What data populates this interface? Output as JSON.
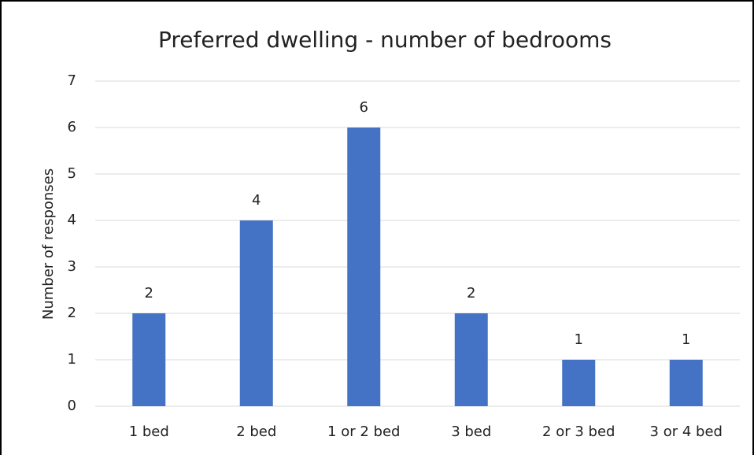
{
  "chart_data": {
    "type": "bar",
    "title": "Preferred dwelling - number of bedrooms",
    "y_label": "Number of responses",
    "categories": [
      "1 bed",
      "2 bed",
      "1 or 2 bed",
      "3 bed",
      "2 or 3 bed",
      "3 or 4 bed"
    ],
    "values": [
      2,
      4,
      6,
      2,
      1,
      1
    ],
    "color": "#4472c4",
    "ylim": [
      0,
      7
    ],
    "yticks": [
      0,
      1,
      2,
      3,
      4,
      5,
      6,
      7
    ],
    "grid": true
  }
}
